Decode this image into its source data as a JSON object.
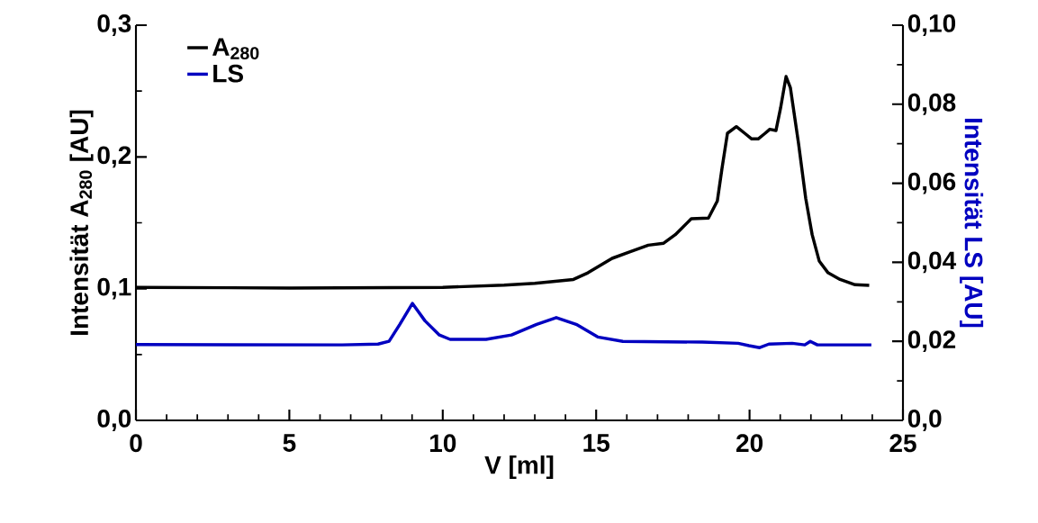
{
  "chart_data": {
    "type": "line",
    "xlabel": "V [ml]",
    "ylabel": "Intensität A$_{280}$ [AU]",
    "y2label": "Intensität LS [AU]",
    "xlim": [
      0,
      25
    ],
    "xticks": [
      0,
      5,
      10,
      15,
      20,
      25
    ],
    "ylim": [
      0,
      0.3
    ],
    "yticks": [
      {
        "value": 0,
        "label": "0,0"
      },
      {
        "value": 0.1,
        "label": "0,1"
      },
      {
        "value": 0.2,
        "label": "0,2"
      },
      {
        "value": 0.3,
        "label": "0,3"
      }
    ],
    "y2lim": [
      0,
      0.1
    ],
    "y2ticks": [
      {
        "value": 0,
        "label": "0,0"
      },
      {
        "value": 0.02,
        "label": "0,02"
      },
      {
        "value": 0.04,
        "label": "0,04"
      },
      {
        "value": 0.06,
        "label": "0,06"
      },
      {
        "value": 0.08,
        "label": "0,08"
      },
      {
        "value": 0.1,
        "label": "0,10"
      }
    ],
    "grid": false,
    "legend": "top left",
    "marker": "none",
    "line_style": "solid",
    "series": [
      {
        "name": "A$_{280}$",
        "color": "#000000",
        "x": [
          0,
          5,
          10,
          12.0,
          13.0,
          14.26,
          14.73,
          15.52,
          16.11,
          16.7,
          17.2,
          17.58,
          18.1,
          18.66,
          18.95,
          19.1,
          19.28,
          19.57,
          19.84,
          20.07,
          20.28,
          20.51,
          20.66,
          20.86,
          21.01,
          21.19,
          21.33,
          21.6,
          21.83,
          22.04,
          22.27,
          22.56,
          22.95,
          23.44,
          23.9
        ],
        "values": [
          0.101,
          0.1005,
          0.101,
          0.1026,
          0.104,
          0.107,
          0.112,
          0.123,
          0.128,
          0.133,
          0.1345,
          0.141,
          0.153,
          0.1536,
          0.1666,
          0.191,
          0.218,
          0.223,
          0.218,
          0.2137,
          0.2137,
          0.218,
          0.221,
          0.22,
          0.237,
          0.261,
          0.2526,
          0.2096,
          0.1686,
          0.141,
          0.121,
          0.112,
          0.107,
          0.103,
          0.1025
        ]
      },
      {
        "name": "LS",
        "color": "#0000c0",
        "axis": "y2",
        "x": [
          0,
          6.72,
          7.89,
          8.25,
          8.6,
          9.01,
          9.42,
          9.89,
          10.24,
          11.41,
          12.24,
          13.06,
          13.7,
          14.35,
          15.05,
          15.87,
          18.46,
          19.63,
          19.98,
          20.33,
          20.63,
          21.39,
          21.8,
          21.98,
          22.21,
          23.97
        ],
        "values": [
          0.0192,
          0.0191,
          0.0193,
          0.02,
          0.0243,
          0.0296,
          0.0252,
          0.0216,
          0.0205,
          0.0205,
          0.0216,
          0.0243,
          0.026,
          0.0243,
          0.0211,
          0.02,
          0.0198,
          0.0195,
          0.0189,
          0.0184,
          0.0193,
          0.0195,
          0.0191,
          0.02,
          0.0191,
          0.0191
        ]
      }
    ]
  }
}
